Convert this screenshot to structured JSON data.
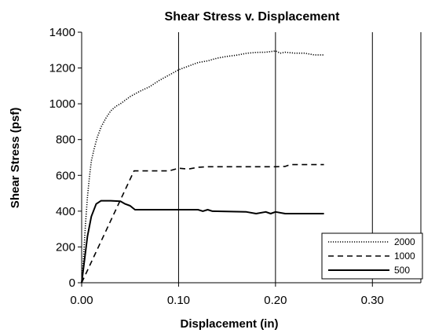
{
  "chart_data": {
    "type": "line",
    "title": "Shear Stress v. Displacement",
    "xlabel": "Displacement (in)",
    "ylabel": "Shear Stress (psf)",
    "xlim": [
      0,
      0.35
    ],
    "ylim": [
      0,
      1400
    ],
    "x_ticks": [
      "0.00",
      "0.10",
      "0.20",
      "0.30"
    ],
    "y_ticks": [
      "0",
      "200",
      "400",
      "600",
      "800",
      "1000",
      "1200",
      "1400"
    ],
    "grid": "vertical",
    "legend_position": "bottom-right",
    "series": [
      {
        "name": "2000",
        "line_style": "dotted",
        "points": [
          [
            0.0,
            0
          ],
          [
            0.002,
            150
          ],
          [
            0.004,
            330
          ],
          [
            0.006,
            480
          ],
          [
            0.008,
            590
          ],
          [
            0.01,
            680
          ],
          [
            0.013,
            750
          ],
          [
            0.016,
            810
          ],
          [
            0.02,
            870
          ],
          [
            0.025,
            920
          ],
          [
            0.03,
            960
          ],
          [
            0.035,
            985
          ],
          [
            0.04,
            1000
          ],
          [
            0.05,
            1040
          ],
          [
            0.06,
            1070
          ],
          [
            0.07,
            1095
          ],
          [
            0.08,
            1130
          ],
          [
            0.09,
            1160
          ],
          [
            0.1,
            1190
          ],
          [
            0.11,
            1210
          ],
          [
            0.12,
            1230
          ],
          [
            0.13,
            1240
          ],
          [
            0.14,
            1255
          ],
          [
            0.15,
            1265
          ],
          [
            0.16,
            1272
          ],
          [
            0.17,
            1282
          ],
          [
            0.18,
            1287
          ],
          [
            0.19,
            1288
          ],
          [
            0.2,
            1295
          ],
          [
            0.205,
            1283
          ],
          [
            0.21,
            1288
          ],
          [
            0.22,
            1283
          ],
          [
            0.23,
            1283
          ],
          [
            0.24,
            1273
          ],
          [
            0.25,
            1273
          ]
        ]
      },
      {
        "name": "1000",
        "line_style": "dashed",
        "points": [
          [
            0.0,
            0
          ],
          [
            0.054,
            625
          ],
          [
            0.07,
            625
          ],
          [
            0.09,
            625
          ],
          [
            0.1,
            640
          ],
          [
            0.11,
            635
          ],
          [
            0.12,
            645
          ],
          [
            0.13,
            648
          ],
          [
            0.15,
            648
          ],
          [
            0.18,
            648
          ],
          [
            0.2,
            648
          ],
          [
            0.21,
            650
          ],
          [
            0.215,
            660
          ],
          [
            0.23,
            660
          ],
          [
            0.25,
            660
          ]
        ]
      },
      {
        "name": "500",
        "line_style": "solid",
        "points": [
          [
            0.0,
            0
          ],
          [
            0.003,
            130
          ],
          [
            0.006,
            260
          ],
          [
            0.01,
            370
          ],
          [
            0.015,
            440
          ],
          [
            0.02,
            458
          ],
          [
            0.03,
            458
          ],
          [
            0.04,
            455
          ],
          [
            0.045,
            440
          ],
          [
            0.05,
            430
          ],
          [
            0.055,
            408
          ],
          [
            0.07,
            408
          ],
          [
            0.1,
            408
          ],
          [
            0.12,
            408
          ],
          [
            0.125,
            400
          ],
          [
            0.13,
            408
          ],
          [
            0.135,
            400
          ],
          [
            0.15,
            398
          ],
          [
            0.17,
            396
          ],
          [
            0.18,
            386
          ],
          [
            0.19,
            396
          ],
          [
            0.195,
            386
          ],
          [
            0.2,
            396
          ],
          [
            0.21,
            386
          ],
          [
            0.22,
            386
          ],
          [
            0.25,
            386
          ]
        ]
      }
    ]
  }
}
